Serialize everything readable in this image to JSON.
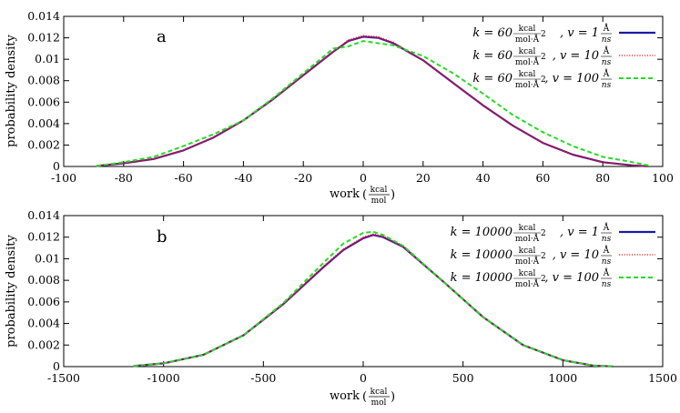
{
  "colors": {
    "series1": "#1a1aa6",
    "series2": "#cc1a1a",
    "series3": "#22dd22",
    "overlap": "#6a1a8c"
  },
  "chart_data": [
    {
      "type": "line",
      "panel_label": "a",
      "xlabel": "work",
      "xlabel_unit_num": "kcal",
      "xlabel_unit_den": "mol",
      "ylabel": "probability density",
      "xlim": [
        -100,
        100
      ],
      "ylim": [
        0,
        0.014
      ],
      "x_ticks": [
        -100,
        -80,
        -60,
        -40,
        -20,
        0,
        20,
        40,
        60,
        80,
        100
      ],
      "x_tick_labels": [
        "-100",
        "-80",
        "-60",
        "-40",
        "-20",
        "0",
        "20",
        "40",
        "60",
        "80",
        "100"
      ],
      "y_ticks": [
        0,
        0.002,
        0.004,
        0.006,
        0.008,
        0.01,
        0.012,
        0.014
      ],
      "y_tick_labels": [
        "0",
        "0.002",
        "0.004",
        "0.006",
        "0.008",
        "0.01",
        "0.012",
        "0.014"
      ],
      "legend_position": "top-right",
      "series": [
        {
          "legend_k": "k = 60",
          "legend_v": ", v = 1",
          "style": "solid",
          "x": [
            -89,
            -80,
            -70,
            -60,
            -50,
            -40,
            -30,
            -20,
            -10,
            -5,
            0,
            5,
            10,
            20,
            30,
            40,
            50,
            60,
            70,
            80,
            90,
            95
          ],
          "y": [
            5e-05,
            0.0003,
            0.0007,
            0.0015,
            0.0027,
            0.0043,
            0.0063,
            0.0085,
            0.0107,
            0.0117,
            0.0121,
            0.012,
            0.0115,
            0.0099,
            0.0078,
            0.0057,
            0.0038,
            0.0022,
            0.0011,
            0.0004,
            0.0001,
            2e-05
          ]
        },
        {
          "legend_k": "k = 60",
          "legend_v": ", v = 10",
          "style": "dotted",
          "x": [
            -89,
            -80,
            -70,
            -60,
            -50,
            -40,
            -30,
            -20,
            -10,
            -5,
            0,
            5,
            10,
            20,
            30,
            40,
            50,
            60,
            70,
            80,
            90,
            95
          ],
          "y": [
            5e-05,
            0.0003,
            0.0007,
            0.0015,
            0.0027,
            0.0043,
            0.0063,
            0.0085,
            0.0107,
            0.0118,
            0.0122,
            0.0121,
            0.0116,
            0.0099,
            0.0078,
            0.0057,
            0.0038,
            0.0022,
            0.0011,
            0.0004,
            0.0001,
            2e-05
          ]
        },
        {
          "legend_k": "k = 60",
          "legend_v": ", v = 100",
          "style": "dashed",
          "x": [
            -89,
            -80,
            -70,
            -60,
            -50,
            -40,
            -30,
            -20,
            -10,
            -5,
            0,
            5,
            10,
            20,
            30,
            40,
            50,
            60,
            70,
            80,
            90,
            96
          ],
          "y": [
            5e-05,
            0.0004,
            0.0009,
            0.0019,
            0.003,
            0.0043,
            0.0064,
            0.0087,
            0.011,
            0.0112,
            0.0117,
            0.0115,
            0.0113,
            0.0103,
            0.0087,
            0.0068,
            0.0048,
            0.0032,
            0.0019,
            0.0009,
            0.0004,
            5e-05
          ]
        }
      ]
    },
    {
      "type": "line",
      "panel_label": "b",
      "xlabel": "work",
      "xlabel_unit_num": "kcal",
      "xlabel_unit_den": "mol",
      "ylabel": "probability density",
      "xlim": [
        -1500,
        1500
      ],
      "ylim": [
        0,
        0.014
      ],
      "x_ticks": [
        -1500,
        -1000,
        -500,
        0,
        500,
        1000,
        1500
      ],
      "x_tick_labels": [
        "-1500",
        "-1000",
        "-500",
        "0",
        "500",
        "1000",
        "1500"
      ],
      "y_ticks": [
        0,
        0.002,
        0.004,
        0.006,
        0.008,
        0.01,
        0.012,
        0.014
      ],
      "y_tick_labels": [
        "0",
        "0.002",
        "0.004",
        "0.006",
        "0.008",
        "0.01",
        "0.012",
        "0.014"
      ],
      "legend_position": "top-right",
      "series": [
        {
          "legend_k": "k = 10000",
          "legend_v": ", v = 1",
          "style": "solid",
          "x": [
            -1150,
            -1000,
            -800,
            -600,
            -400,
            -200,
            -100,
            0,
            50,
            100,
            200,
            400,
            600,
            800,
            1000,
            1150,
            1250
          ],
          "y": [
            5e-05,
            0.0003,
            0.0011,
            0.0029,
            0.0058,
            0.0092,
            0.0108,
            0.0119,
            0.0122,
            0.012,
            0.0111,
            0.0079,
            0.0046,
            0.002,
            0.0006,
            0.0001,
            2e-05
          ]
        },
        {
          "legend_k": "k = 10000",
          "legend_v": ", v = 10",
          "style": "dotted",
          "x": [
            -1150,
            -1000,
            -800,
            -600,
            -400,
            -200,
            -100,
            0,
            50,
            100,
            200,
            400,
            600,
            800,
            1000,
            1150,
            1250
          ],
          "y": [
            5e-05,
            0.0003,
            0.0011,
            0.0029,
            0.0058,
            0.0093,
            0.0109,
            0.012,
            0.0123,
            0.0121,
            0.0112,
            0.0079,
            0.0046,
            0.002,
            0.0006,
            0.0001,
            2e-05
          ]
        },
        {
          "legend_k": "k = 10000",
          "legend_v": ", v = 100",
          "style": "dashed",
          "x": [
            -1150,
            -1000,
            -800,
            -600,
            -400,
            -200,
            -100,
            0,
            50,
            100,
            200,
            400,
            600,
            800,
            1000,
            1150,
            1250
          ],
          "y": [
            5e-05,
            0.0003,
            0.0011,
            0.0029,
            0.0059,
            0.0096,
            0.0114,
            0.0124,
            0.0125,
            0.0122,
            0.0112,
            0.0079,
            0.0046,
            0.002,
            0.0006,
            0.0001,
            2e-05
          ]
        }
      ]
    }
  ]
}
